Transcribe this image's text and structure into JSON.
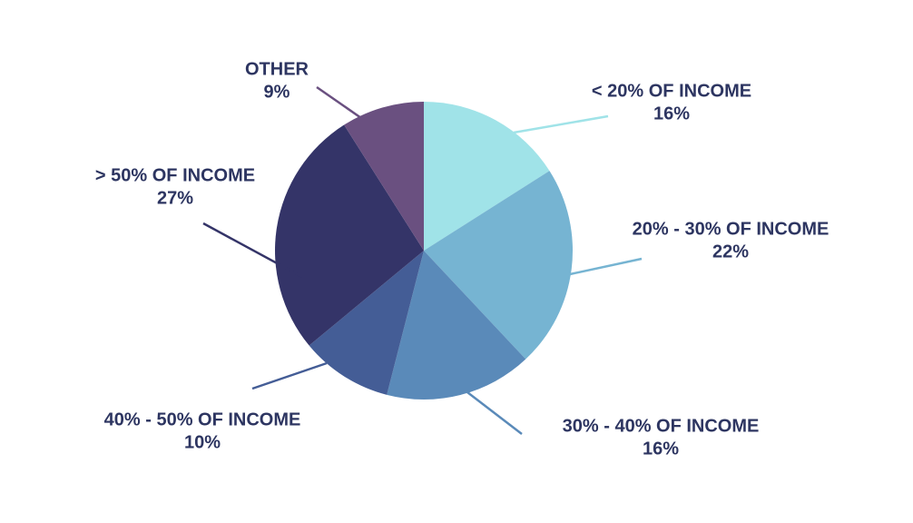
{
  "chart_data": {
    "type": "pie",
    "categories": [
      "< 20% OF INCOME",
      "20% - 30% OF INCOME",
      "30% - 40% OF INCOME",
      "40% - 50% OF INCOME",
      "> 50% OF INCOME",
      "OTHER"
    ],
    "values": [
      16,
      22,
      16,
      10,
      27,
      9
    ],
    "value_labels": [
      "16%",
      "22%",
      "16%",
      "10%",
      "27%",
      "9%"
    ],
    "colors": [
      "#a0e3e8",
      "#76b4d2",
      "#5a8ab9",
      "#445d96",
      "#343468",
      "#6a5080"
    ]
  }
}
